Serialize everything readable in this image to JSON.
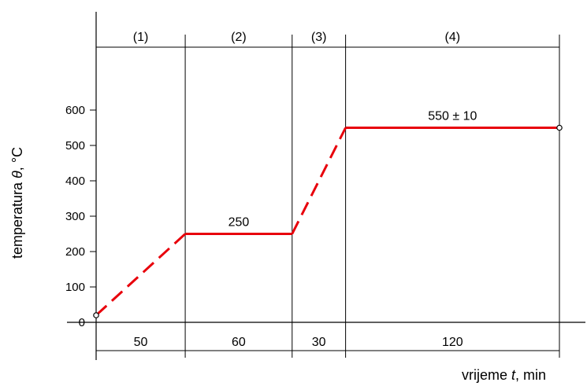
{
  "chart_data": {
    "type": "line",
    "ylabel_parts": [
      "temperatura ",
      "θ",
      ", °C"
    ],
    "xlabel_parts": [
      "vrijeme ",
      "t",
      ", min"
    ],
    "ylim": [
      0,
      700
    ],
    "yticks": [
      0,
      100,
      200,
      300,
      400,
      500,
      600
    ],
    "phases": [
      {
        "label": "(1)",
        "duration": 50,
        "duration_label": "50"
      },
      {
        "label": "(2)",
        "duration": 60,
        "duration_label": "60"
      },
      {
        "label": "(3)",
        "duration": 30,
        "duration_label": "30"
      },
      {
        "label": "(4)",
        "duration": 120,
        "duration_label": "120"
      }
    ],
    "segments": [
      {
        "x0": 0,
        "y0": 20,
        "x1": 50,
        "y1": 250,
        "style": "dashed"
      },
      {
        "x0": 50,
        "y0": 250,
        "x1": 110,
        "y1": 250,
        "style": "solid"
      },
      {
        "x0": 110,
        "y0": 250,
        "x1": 140,
        "y1": 550,
        "style": "dashed"
      },
      {
        "x0": 140,
        "y0": 550,
        "x1": 260,
        "y1": 550,
        "style": "solid"
      }
    ],
    "endpoints": [
      {
        "x": 0,
        "y": 20
      },
      {
        "x": 260,
        "y": 550
      }
    ],
    "annotations": [
      {
        "text": "250",
        "x": 80,
        "y": 250
      },
      {
        "text": "550 ± 10",
        "x": 200,
        "y": 550
      }
    ],
    "line_color": "#e8000b"
  }
}
